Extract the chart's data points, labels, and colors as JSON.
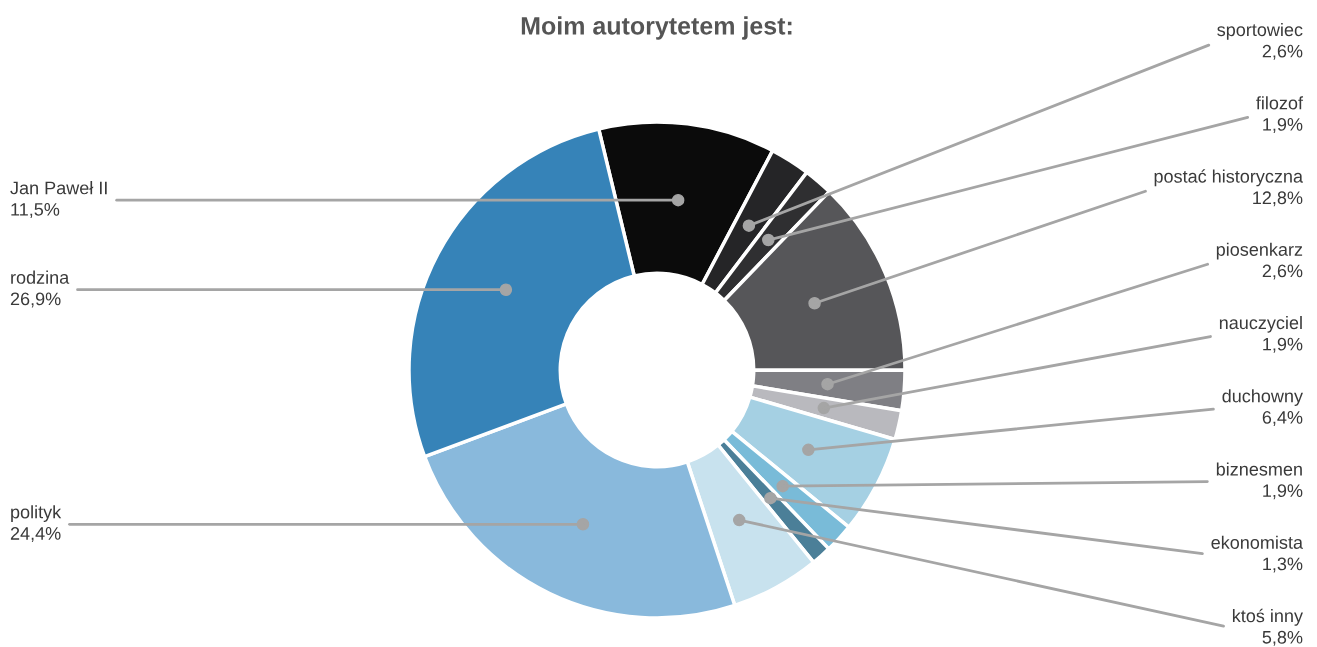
{
  "chart_data": {
    "type": "donut",
    "title": "Moim autorytetem jest:",
    "categories": [
      "Jan Paweł II",
      "sportowiec",
      "filozof",
      "postać historyczna",
      "piosenkarz",
      "nauczyciel",
      "duchowny",
      "biznesmen",
      "ekonomista",
      "ktoś inny",
      "polityk",
      "rodzina"
    ],
    "values": [
      11.5,
      2.6,
      1.9,
      12.8,
      2.6,
      1.9,
      6.4,
      1.9,
      1.3,
      5.8,
      24.4,
      26.9
    ],
    "value_labels": [
      "11,5%",
      "2,6%",
      "1,9%",
      "12,8%",
      "2,6%",
      "1,9%",
      "6,4%",
      "1,9%",
      "1,3%",
      "5,8%",
      "24,4%",
      "26,9%"
    ],
    "colors": [
      "#0b0b0b",
      "#252527",
      "#2f2f31",
      "#565659",
      "#7f7f84",
      "#b9b9be",
      "#a5d0e3",
      "#79bbd8",
      "#4b7f98",
      "#c8e2ee",
      "#89b9dc",
      "#3683b8"
    ],
    "legend": false
  }
}
